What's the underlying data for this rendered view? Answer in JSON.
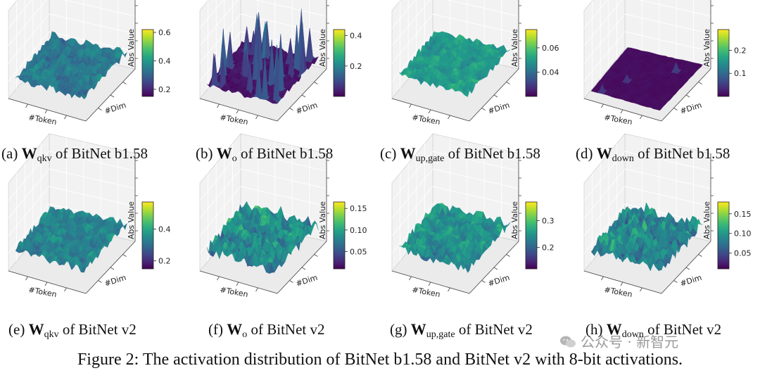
{
  "figure_caption": "Figure 2: The activation distribution of BitNet b1.58 and BitNet v2 with 8-bit activations.",
  "watermark": "公众号 · 新智元",
  "axis_labels": {
    "x": "#Token",
    "y": "#Dim",
    "z": "Abs Value"
  },
  "chart_data": [
    {
      "type": "surface3d",
      "letter": "(a)",
      "weight": "W",
      "sub": "qkv",
      "model": "of BitNet b1.58",
      "colorbar": {
        "min": 0.15,
        "max": 0.62,
        "ticks": [
          "0.2",
          "0.4",
          "0.6"
        ],
        "tick_values": [
          0.2,
          0.4,
          0.6
        ]
      },
      "surface": {
        "style": "bright",
        "base": 0.42,
        "noise": 0.18,
        "spikes": 0
      }
    },
    {
      "type": "surface3d",
      "letter": "(b)",
      "weight": "W",
      "sub": "o",
      "model": "of BitNet b1.58",
      "colorbar": {
        "min": 0.0,
        "max": 0.44,
        "ticks": [
          "0.2",
          "0.4"
        ],
        "tick_values": [
          0.2,
          0.4
        ]
      },
      "surface": {
        "style": "dark-spiky",
        "base": 0.05,
        "noise": 0.05,
        "spikes": 40
      }
    },
    {
      "type": "surface3d",
      "letter": "(c)",
      "weight": "W",
      "sub": "up,gate",
      "model": "of BitNet b1.58",
      "colorbar": {
        "min": 0.02,
        "max": 0.075,
        "ticks": [
          "0.04",
          "0.06"
        ],
        "tick_values": [
          0.04,
          0.06
        ]
      },
      "surface": {
        "style": "bright",
        "base": 0.55,
        "noise": 0.15,
        "spikes": 0
      }
    },
    {
      "type": "surface3d",
      "letter": "(d)",
      "weight": "W",
      "sub": "down",
      "model": "of BitNet b1.58",
      "colorbar": {
        "min": 0.0,
        "max": 0.29,
        "ticks": [
          "0.1",
          "0.2"
        ],
        "tick_values": [
          0.1,
          0.2
        ]
      },
      "surface": {
        "style": "flat-dark",
        "base": 0.03,
        "noise": 0.02,
        "spikes": 3
      }
    },
    {
      "type": "surface3d",
      "letter": "(e)",
      "weight": "W",
      "sub": "qkv",
      "model": "of BitNet v2",
      "colorbar": {
        "min": 0.15,
        "max": 0.57,
        "ticks": [
          "0.2",
          "0.4"
        ],
        "tick_values": [
          0.2,
          0.4
        ]
      },
      "surface": {
        "style": "bright",
        "base": 0.45,
        "noise": 0.18,
        "spikes": 0
      }
    },
    {
      "type": "surface3d",
      "letter": "(f)",
      "weight": "W",
      "sub": "o",
      "model": "of BitNet v2",
      "colorbar": {
        "min": 0.01,
        "max": 0.165,
        "ticks": [
          "0.05",
          "0.10",
          "0.15"
        ],
        "tick_values": [
          0.05,
          0.1,
          0.15
        ]
      },
      "surface": {
        "style": "bright-spiky",
        "base": 0.45,
        "noise": 0.3,
        "spikes": 0
      }
    },
    {
      "type": "surface3d",
      "letter": "(g)",
      "weight": "W",
      "sub": "up,gate",
      "model": "of BitNet v2",
      "colorbar": {
        "min": 0.12,
        "max": 0.37,
        "ticks": [
          "0.2",
          "0.3"
        ],
        "tick_values": [
          0.2,
          0.3
        ]
      },
      "surface": {
        "style": "bright",
        "base": 0.5,
        "noise": 0.22,
        "spikes": 0
      }
    },
    {
      "type": "surface3d",
      "letter": "(h)",
      "weight": "W",
      "sub": "down",
      "model": "of BitNet v2",
      "colorbar": {
        "min": 0.01,
        "max": 0.18,
        "ticks": [
          "0.05",
          "0.10",
          "0.15"
        ],
        "tick_values": [
          0.05,
          0.1,
          0.15
        ]
      },
      "surface": {
        "style": "bright-spiky",
        "base": 0.42,
        "noise": 0.3,
        "spikes": 0
      }
    }
  ]
}
